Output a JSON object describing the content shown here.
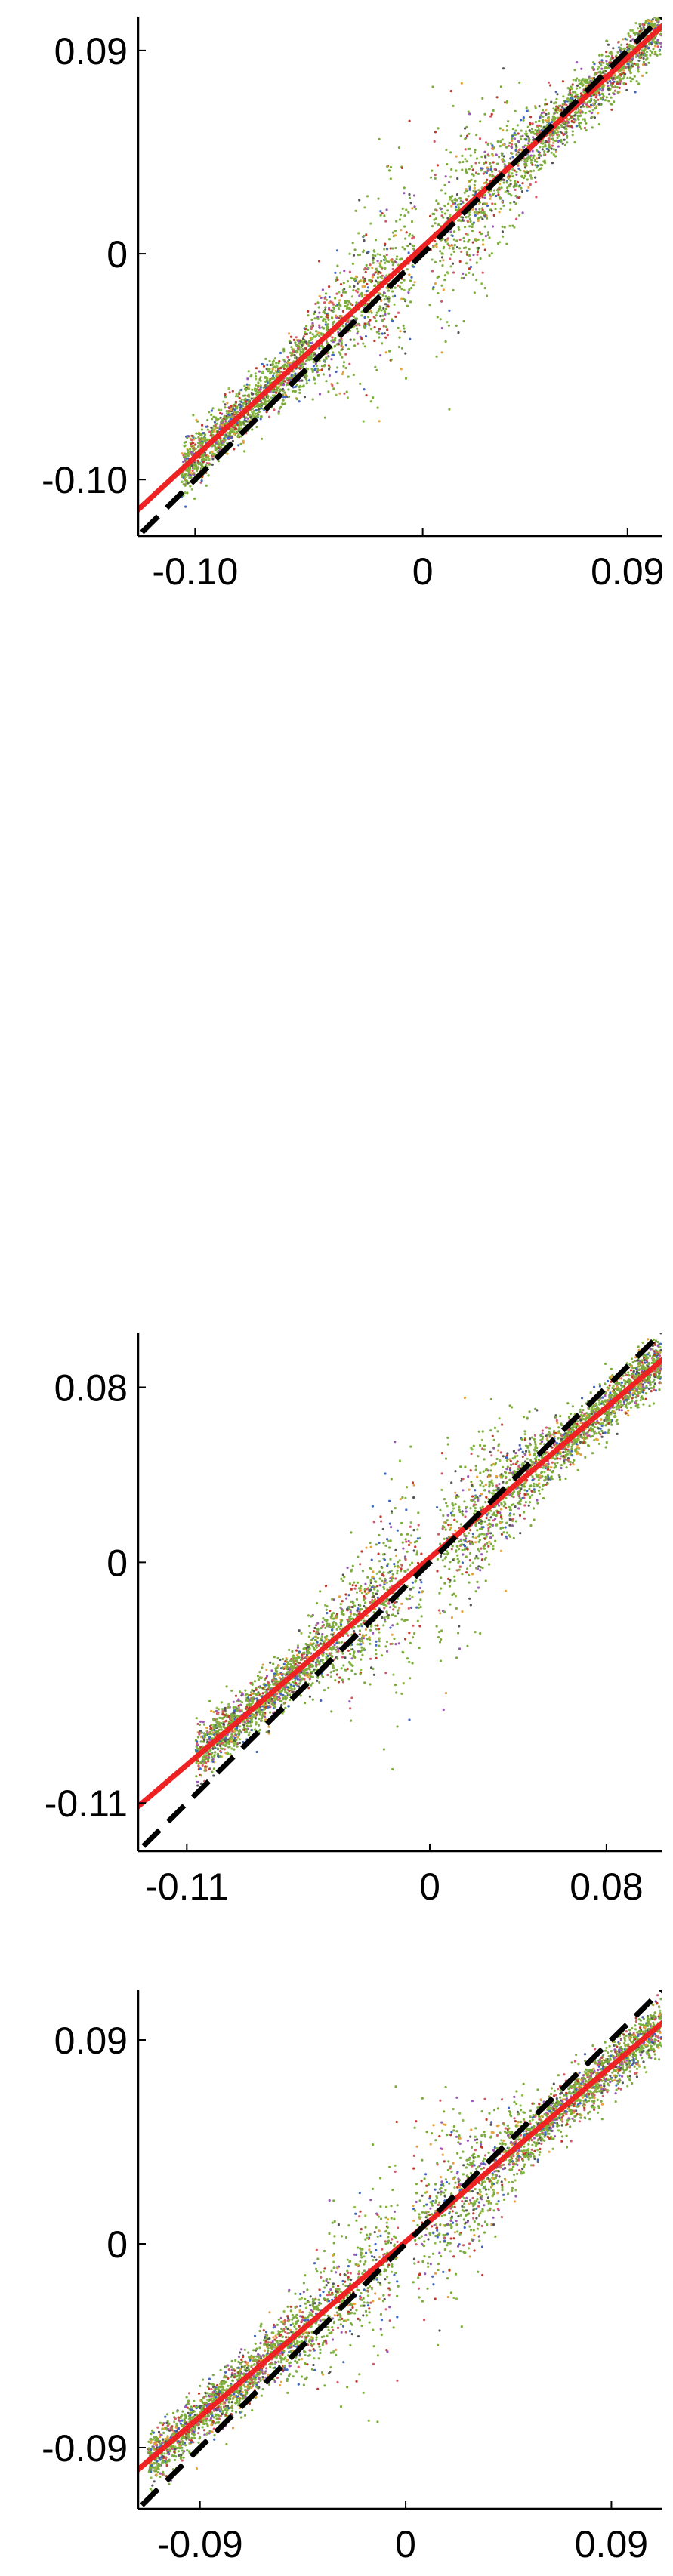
{
  "chart_data": [
    {
      "type": "scatter",
      "xlim": [
        -0.125,
        0.105
      ],
      "ylim": [
        -0.125,
        0.105
      ],
      "x_ticks": [
        {
          "value": -0.1,
          "label": "-0.10"
        },
        {
          "value": 0,
          "label": "0"
        },
        {
          "value": 0.09,
          "label": "0.09"
        }
      ],
      "y_ticks": [
        {
          "value": 0.09,
          "label": "0.09"
        },
        {
          "value": 0,
          "label": "0"
        },
        {
          "value": -0.1,
          "label": "-0.10"
        }
      ],
      "identity_line": {
        "style": "dashed",
        "color": "#000000"
      },
      "fit_line": {
        "slope": 0.93,
        "intercept": 0.003,
        "color": "#ee2222"
      },
      "point_colors": [
        "#7cad3c",
        "#8cbf45",
        "#e6a23c",
        "#d45a6a",
        "#3f66c0",
        "#9b59b6",
        "#555555",
        "#c0392b"
      ],
      "grid": false,
      "legend": "none"
    },
    {
      "type": "scatter",
      "xlim": [
        -0.132,
        0.105
      ],
      "ylim": [
        -0.132,
        0.105
      ],
      "x_ticks": [
        {
          "value": -0.11,
          "label": "-0.11"
        },
        {
          "value": 0,
          "label": "0"
        },
        {
          "value": 0.08,
          "label": "0.08"
        }
      ],
      "y_ticks": [
        {
          "value": 0.08,
          "label": "0.08"
        },
        {
          "value": 0,
          "label": "0"
        },
        {
          "value": -0.11,
          "label": "-0.11"
        }
      ],
      "identity_line": {
        "style": "dashed",
        "color": "#000000"
      },
      "fit_line": {
        "slope": 0.86,
        "intercept": 0.002,
        "color": "#ee2222"
      },
      "point_colors": [
        "#7cad3c",
        "#8cbf45",
        "#e6a23c",
        "#d45a6a",
        "#3f66c0",
        "#9b59b6",
        "#555555",
        "#c0392b"
      ],
      "grid": false,
      "legend": "none"
    },
    {
      "type": "scatter",
      "xlim": [
        -0.117,
        0.112
      ],
      "ylim": [
        -0.117,
        0.112
      ],
      "x_ticks": [
        {
          "value": -0.09,
          "label": "-0.09"
        },
        {
          "value": 0,
          "label": "0"
        },
        {
          "value": 0.09,
          "label": "0.09"
        }
      ],
      "y_ticks": [
        {
          "value": 0.09,
          "label": "0.09"
        },
        {
          "value": 0,
          "label": "0"
        },
        {
          "value": -0.09,
          "label": "-0.09"
        }
      ],
      "identity_line": {
        "style": "dashed",
        "color": "#000000"
      },
      "fit_line": {
        "slope": 0.86,
        "intercept": 0.001,
        "color": "#ee2222"
      },
      "point_colors": [
        "#7cad3c",
        "#8cbf45",
        "#e6a23c",
        "#d45a6a",
        "#3f66c0",
        "#9b59b6",
        "#555555",
        "#c0392b"
      ],
      "grid": false,
      "legend": "none"
    }
  ]
}
